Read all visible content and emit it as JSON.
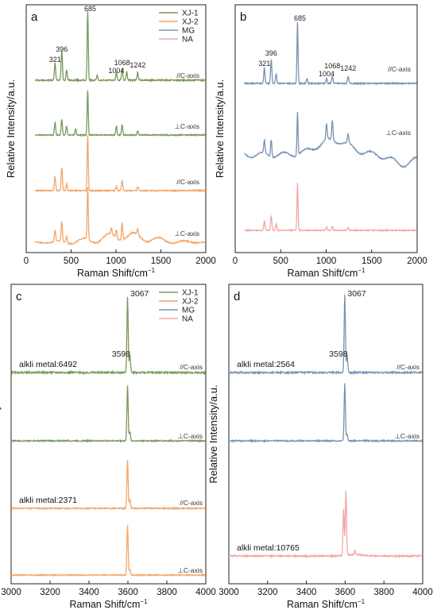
{
  "figure": {
    "ylabel": "Relative Intensity/a.u.",
    "xlabel_main": "Raman Shift/cm",
    "xlabel_sup": "−1",
    "legend": [
      {
        "name": "XJ-1",
        "color": "#7a9a5a"
      },
      {
        "name": "XJ-2",
        "color": "#f2a66a"
      },
      {
        "name": "MG",
        "color": "#7793b4"
      },
      {
        "name": "NA",
        "color": "#f4a6a8"
      }
    ],
    "colors": {
      "XJ-1": "#7a9a5a",
      "XJ-2": "#f2a66a",
      "MG": "#7793b4",
      "NA": "#f4a6a8"
    }
  },
  "chart_data": [
    {
      "panel": "a",
      "type": "line",
      "xlim": [
        0,
        2000
      ],
      "xticks": [
        0,
        500,
        1000,
        1500,
        2000
      ],
      "show_legend": true,
      "peak_labels": [
        "321",
        "396",
        "685",
        "1004",
        "1068",
        "1242"
      ],
      "series": [
        {
          "name": "XJ-1",
          "orientation": "//C-axis",
          "annotation": "",
          "peaks": [
            [
              321,
              0.25
            ],
            [
              396,
              0.42
            ],
            [
              450,
              0.15
            ],
            [
              685,
              1.0
            ],
            [
              790,
              0.07
            ],
            [
              1004,
              0.11
            ],
            [
              1068,
              0.17
            ],
            [
              1120,
              0.12
            ],
            [
              1242,
              0.12
            ]
          ],
          "background": "flat"
        },
        {
          "name": "XJ-1",
          "orientation": "⊥C-axis",
          "annotation": "",
          "peaks": [
            [
              321,
              0.24
            ],
            [
              396,
              0.3
            ],
            [
              450,
              0.17
            ],
            [
              550,
              0.12
            ],
            [
              685,
              0.86
            ],
            [
              1004,
              0.17
            ],
            [
              1068,
              0.19
            ],
            [
              1242,
              0.08
            ]
          ],
          "background": "flat"
        },
        {
          "name": "XJ-2",
          "orientation": "//C-axis",
          "annotation": "",
          "peaks": [
            [
              321,
              0.25
            ],
            [
              396,
              0.42
            ],
            [
              450,
              0.12
            ],
            [
              685,
              1.0
            ],
            [
              1004,
              0.08
            ],
            [
              1068,
              0.18
            ],
            [
              1242,
              0.07
            ]
          ],
          "background": "flat"
        },
        {
          "name": "XJ-2",
          "orientation": "⊥C-axis",
          "annotation": "",
          "peaks": [
            [
              321,
              0.22
            ],
            [
              396,
              0.38
            ],
            [
              450,
              0.13
            ],
            [
              685,
              1.0
            ],
            [
              950,
              0.12
            ],
            [
              1004,
              0.15
            ],
            [
              1068,
              0.33
            ],
            [
              1242,
              0.12
            ]
          ],
          "background": "broad"
        }
      ]
    },
    {
      "panel": "b",
      "type": "line",
      "xlim": [
        0,
        2000
      ],
      "xticks": [
        0,
        500,
        1000,
        1500,
        2000
      ],
      "show_legend": false,
      "peak_labels": [
        "321",
        "396",
        "685",
        "1004",
        "1068",
        "1242"
      ],
      "series": [
        {
          "name": "MG",
          "orientation": "//C-axis",
          "annotation": "",
          "peaks": [
            [
              321,
              0.25
            ],
            [
              396,
              0.38
            ],
            [
              450,
              0.16
            ],
            [
              685,
              1.0
            ],
            [
              790,
              0.08
            ],
            [
              1004,
              0.08
            ],
            [
              1068,
              0.12
            ],
            [
              1242,
              0.11
            ]
          ],
          "background": "flat"
        },
        {
          "name": "MG",
          "orientation": "⊥C-axis",
          "annotation": "",
          "peaks": [
            [
              321,
              0.25
            ],
            [
              396,
              0.33
            ],
            [
              685,
              0.85
            ],
            [
              1004,
              0.3
            ],
            [
              1068,
              0.38
            ],
            [
              1242,
              0.18
            ]
          ],
          "background": "wavy"
        },
        {
          "name": "NA",
          "orientation": "",
          "annotation": "",
          "peaks": [
            [
              321,
              0.2
            ],
            [
              396,
              0.3
            ],
            [
              450,
              0.14
            ],
            [
              685,
              1.0
            ],
            [
              1004,
              0.07
            ],
            [
              1068,
              0.09
            ],
            [
              1242,
              0.07
            ]
          ],
          "background": "flat"
        }
      ]
    },
    {
      "panel": "c",
      "type": "line",
      "xlim": [
        3000,
        4000
      ],
      "xticks": [
        3000,
        3200,
        3400,
        3600,
        3800,
        4000
      ],
      "show_legend": true,
      "peak_labels": [
        "3598",
        "3067"
      ],
      "series": [
        {
          "name": "XJ-1",
          "orientation": "//C-axis",
          "annotation": "alkli metal:6492",
          "peaks": [
            [
              3598,
              0.85
            ],
            [
              3610,
              0.2
            ]
          ],
          "background": "flat"
        },
        {
          "name": "XJ-1",
          "orientation": "⊥C-axis",
          "annotation": "",
          "peaks": [
            [
              3598,
              0.9
            ],
            [
              3610,
              0.15
            ]
          ],
          "background": "flat"
        },
        {
          "name": "XJ-2",
          "orientation": "//C-axis",
          "annotation": "alkli metal:2371",
          "peaks": [
            [
              3598,
              0.8
            ],
            [
              3610,
              0.15
            ]
          ],
          "background": "flat"
        },
        {
          "name": "XJ-2",
          "orientation": "⊥C-axis",
          "annotation": "",
          "peaks": [
            [
              3598,
              0.9
            ],
            [
              3610,
              0.1
            ]
          ],
          "background": "flat"
        }
      ]
    },
    {
      "panel": "d",
      "type": "line",
      "xlim": [
        3000,
        4000
      ],
      "xticks": [
        3000,
        3200,
        3400,
        3600,
        3800,
        4000
      ],
      "show_legend": false,
      "peak_labels": [
        "3598",
        "3067"
      ],
      "series": [
        {
          "name": "MG",
          "orientation": "//C-axis",
          "annotation": "alkli metal:2564",
          "peaks": [
            [
              3598,
              0.9
            ],
            [
              3610,
              0.2
            ]
          ],
          "background": "flat"
        },
        {
          "name": "MG",
          "orientation": "⊥C-axis",
          "annotation": "",
          "peaks": [
            [
              3598,
              0.9
            ],
            [
              3610,
              0.1
            ]
          ],
          "background": "flat"
        },
        {
          "name": "NA",
          "orientation": "",
          "annotation": "alkli metal:10765",
          "peaks": [
            [
              3592,
              0.65
            ],
            [
              3604,
              0.9
            ],
            [
              3650,
              0.05
            ]
          ],
          "background": "flat"
        }
      ]
    }
  ]
}
